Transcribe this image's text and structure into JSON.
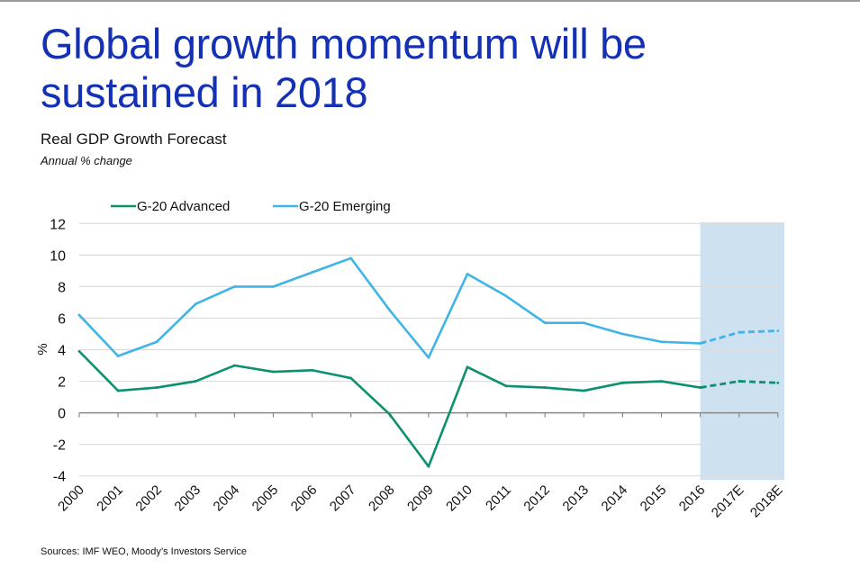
{
  "header": {
    "title_line1": "Global growth momentum will be",
    "title_line2": "sustained in 2018",
    "subtitle": "Real GDP Growth Forecast",
    "unit_note": "Annual % change"
  },
  "footer": {
    "source": "Sources: IMF WEO, Moody’s Investors Service"
  },
  "chart_data": {
    "type": "line",
    "title": "Real GDP Growth Forecast",
    "xlabel": "",
    "ylabel": "%",
    "ylim": [
      -4,
      12
    ],
    "yticks": [
      "-4",
      "-2",
      "0",
      "2",
      "4",
      "6",
      "8",
      "10",
      "12"
    ],
    "grid": true,
    "legend_position": "top",
    "forecast_shaded_from": "2016",
    "forecast_shade_color": "#cde1f1",
    "categories": [
      "2000",
      "2001",
      "2002",
      "2003",
      "2004",
      "2005",
      "2006",
      "2007",
      "2008",
      "2009",
      "2010",
      "2011",
      "2012",
      "2013",
      "2014",
      "2015",
      "2016",
      "2017E",
      "2018E"
    ],
    "series": [
      {
        "name": "G-20 Advanced",
        "color": "#0b9070",
        "values": [
          3.9,
          1.4,
          1.6,
          2.0,
          3.0,
          2.6,
          2.7,
          2.2,
          -0.1,
          -3.4,
          2.9,
          1.7,
          1.6,
          1.4,
          1.9,
          2.0,
          1.6,
          2.0,
          1.9
        ]
      },
      {
        "name": "G-20 Emerging",
        "color": "#3fb4e6",
        "values": [
          6.2,
          3.6,
          4.5,
          6.9,
          8.0,
          8.0,
          8.9,
          9.8,
          6.5,
          3.5,
          8.8,
          7.4,
          5.7,
          5.7,
          5.0,
          4.5,
          4.4,
          5.1,
          5.2
        ]
      }
    ]
  }
}
